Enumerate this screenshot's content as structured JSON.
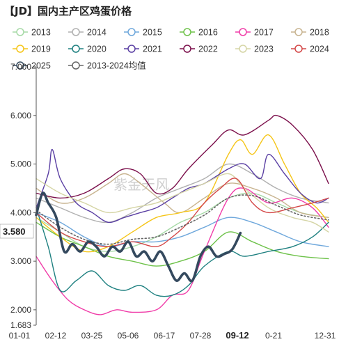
{
  "chart_data": {
    "type": "line",
    "title": "【JD】国内主产区鸡蛋价格",
    "x_tick_labels": [
      "01-01",
      "02-12",
      "03-25",
      "05-06",
      "06-17",
      "07-28",
      "09-12",
      "0-21",
      "12-31"
    ],
    "highlight_x_label": "09-12",
    "y_tick_labels": [
      "1.683",
      "2.000",
      "3.000",
      "4.000",
      "5.000",
      "6.000",
      "7.000"
    ],
    "ylim": [
      1.683,
      7.0
    ],
    "current_value_label": "3.580",
    "current_value": 3.58,
    "grid": false,
    "legend_position": "top",
    "watermark": "紫金天风",
    "x_day_range": [
      0,
      365
    ],
    "series": [
      {
        "name": "2013",
        "color": "#a6d9a6",
        "dashed": false,
        "width": 1.4,
        "points": [
          [
            0,
            3.9
          ],
          [
            30,
            3.6
          ],
          [
            60,
            3.3
          ],
          [
            90,
            3.2
          ],
          [
            120,
            3.3
          ],
          [
            150,
            3.5
          ],
          [
            180,
            3.8
          ],
          [
            210,
            4.0
          ],
          [
            240,
            4.3
          ],
          [
            270,
            4.4
          ],
          [
            300,
            4.2
          ],
          [
            330,
            4.0
          ],
          [
            365,
            3.9
          ]
        ]
      },
      {
        "name": "2014",
        "color": "#b0b0b0",
        "dashed": false,
        "width": 1.4,
        "points": [
          [
            0,
            4.3
          ],
          [
            30,
            4.1
          ],
          [
            60,
            3.9
          ],
          [
            90,
            3.8
          ],
          [
            120,
            4.0
          ],
          [
            150,
            4.3
          ],
          [
            180,
            4.5
          ],
          [
            210,
            4.7
          ],
          [
            240,
            5.0
          ],
          [
            270,
            4.8
          ],
          [
            300,
            4.5
          ],
          [
            330,
            4.3
          ],
          [
            365,
            4.2
          ]
        ]
      },
      {
        "name": "2015",
        "color": "#6fa8dc",
        "dashed": false,
        "width": 1.4,
        "points": [
          [
            0,
            4.0
          ],
          [
            30,
            3.8
          ],
          [
            60,
            3.5
          ],
          [
            90,
            3.3
          ],
          [
            120,
            3.4
          ],
          [
            150,
            3.4
          ],
          [
            180,
            3.5
          ],
          [
            210,
            3.7
          ],
          [
            240,
            3.9
          ],
          [
            270,
            3.8
          ],
          [
            300,
            3.6
          ],
          [
            330,
            3.4
          ],
          [
            365,
            3.3
          ]
        ]
      },
      {
        "name": "2016",
        "color": "#6ec24a",
        "dashed": false,
        "width": 1.4,
        "points": [
          [
            0,
            3.8
          ],
          [
            30,
            3.5
          ],
          [
            60,
            3.3
          ],
          [
            90,
            3.1
          ],
          [
            120,
            3.0
          ],
          [
            150,
            2.9
          ],
          [
            180,
            3.0
          ],
          [
            210,
            3.2
          ],
          [
            240,
            3.6
          ],
          [
            270,
            3.4
          ],
          [
            300,
            3.2
          ],
          [
            330,
            3.1
          ],
          [
            365,
            3.05
          ]
        ]
      },
      {
        "name": "2017",
        "color": "#f03ca8",
        "dashed": false,
        "width": 1.4,
        "points": [
          [
            0,
            3.1
          ],
          [
            20,
            2.6
          ],
          [
            40,
            2.2
          ],
          [
            60,
            2.0
          ],
          [
            80,
            1.9
          ],
          [
            100,
            2.0
          ],
          [
            120,
            1.95
          ],
          [
            150,
            2.0
          ],
          [
            170,
            2.3
          ],
          [
            190,
            2.4
          ],
          [
            210,
            3.2
          ],
          [
            240,
            4.3
          ],
          [
            260,
            4.5
          ],
          [
            290,
            4.2
          ],
          [
            320,
            4.3
          ],
          [
            345,
            4.1
          ],
          [
            365,
            3.7
          ]
        ]
      },
      {
        "name": "2018",
        "color": "#c8b490",
        "dashed": false,
        "width": 1.4,
        "points": [
          [
            0,
            4.5
          ],
          [
            30,
            4.2
          ],
          [
            60,
            4.3
          ],
          [
            90,
            4.6
          ],
          [
            110,
            4.8
          ],
          [
            130,
            4.6
          ],
          [
            160,
            4.2
          ],
          [
            180,
            4.0
          ],
          [
            210,
            4.3
          ],
          [
            240,
            4.6
          ],
          [
            270,
            4.5
          ],
          [
            300,
            4.3
          ],
          [
            330,
            4.0
          ],
          [
            365,
            3.9
          ]
        ]
      },
      {
        "name": "2019",
        "color": "#f5c518",
        "dashed": false,
        "width": 1.4,
        "points": [
          [
            0,
            3.9
          ],
          [
            30,
            3.5
          ],
          [
            60,
            3.2
          ],
          [
            90,
            3.3
          ],
          [
            120,
            3.6
          ],
          [
            150,
            3.9
          ],
          [
            180,
            4.0
          ],
          [
            210,
            4.2
          ],
          [
            240,
            5.2
          ],
          [
            255,
            5.5
          ],
          [
            270,
            5.2
          ],
          [
            290,
            5.6
          ],
          [
            310,
            5.0
          ],
          [
            330,
            4.4
          ],
          [
            350,
            4.1
          ],
          [
            365,
            3.8
          ]
        ]
      },
      {
        "name": "2020",
        "color": "#1e8080",
        "dashed": false,
        "width": 1.4,
        "points": [
          [
            0,
            4.1
          ],
          [
            15,
            3.3
          ],
          [
            30,
            2.4
          ],
          [
            50,
            2.6
          ],
          [
            70,
            2.8
          ],
          [
            90,
            2.5
          ],
          [
            110,
            2.4
          ],
          [
            130,
            2.5
          ],
          [
            150,
            2.3
          ],
          [
            170,
            2.3
          ],
          [
            190,
            2.5
          ],
          [
            210,
            2.9
          ],
          [
            240,
            3.2
          ],
          [
            260,
            3.1
          ],
          [
            290,
            3.2
          ],
          [
            320,
            3.3
          ],
          [
            345,
            3.5
          ],
          [
            365,
            3.8
          ]
        ]
      },
      {
        "name": "2021",
        "color": "#5a3fa3",
        "dashed": false,
        "width": 1.4,
        "points": [
          [
            0,
            4.1
          ],
          [
            15,
            4.8
          ],
          [
            20,
            5.3
          ],
          [
            30,
            4.7
          ],
          [
            50,
            4.2
          ],
          [
            70,
            4.0
          ],
          [
            90,
            3.8
          ],
          [
            110,
            3.9
          ],
          [
            130,
            4.0
          ],
          [
            150,
            4.1
          ],
          [
            170,
            4.3
          ],
          [
            190,
            4.5
          ],
          [
            210,
            4.6
          ],
          [
            240,
            4.9
          ],
          [
            260,
            5.0
          ],
          [
            280,
            4.7
          ],
          [
            290,
            5.2
          ],
          [
            310,
            4.8
          ],
          [
            330,
            4.4
          ],
          [
            350,
            4.2
          ],
          [
            365,
            4.3
          ]
        ]
      },
      {
        "name": "2022",
        "color": "#7b0f4b",
        "dashed": false,
        "width": 1.4,
        "points": [
          [
            0,
            4.4
          ],
          [
            30,
            4.3
          ],
          [
            60,
            4.4
          ],
          [
            90,
            4.7
          ],
          [
            110,
            4.9
          ],
          [
            130,
            4.8
          ],
          [
            150,
            4.4
          ],
          [
            170,
            4.5
          ],
          [
            190,
            4.9
          ],
          [
            220,
            5.4
          ],
          [
            240,
            5.7
          ],
          [
            260,
            5.6
          ],
          [
            290,
            5.9
          ],
          [
            300,
            6.0
          ],
          [
            320,
            5.8
          ],
          [
            345,
            5.3
          ],
          [
            365,
            4.6
          ]
        ]
      },
      {
        "name": "2023",
        "color": "#d5d5a5",
        "dashed": false,
        "width": 1.4,
        "points": [
          [
            0,
            4.7
          ],
          [
            30,
            4.4
          ],
          [
            60,
            4.2
          ],
          [
            90,
            4.0
          ],
          [
            120,
            4.1
          ],
          [
            150,
            4.2
          ],
          [
            180,
            4.4
          ],
          [
            210,
            4.6
          ],
          [
            240,
            4.8
          ],
          [
            260,
            4.5
          ],
          [
            290,
            4.1
          ],
          [
            320,
            3.9
          ],
          [
            345,
            3.8
          ],
          [
            365,
            3.6
          ]
        ]
      },
      {
        "name": "2024",
        "color": "#d44848",
        "dashed": false,
        "width": 1.4,
        "points": [
          [
            0,
            4.0
          ],
          [
            30,
            3.6
          ],
          [
            60,
            3.4
          ],
          [
            90,
            3.3
          ],
          [
            120,
            3.4
          ],
          [
            150,
            3.3
          ],
          [
            170,
            3.5
          ],
          [
            190,
            3.8
          ],
          [
            210,
            4.2
          ],
          [
            230,
            4.5
          ],
          [
            250,
            4.7
          ],
          [
            270,
            4.2
          ],
          [
            290,
            4.0
          ],
          [
            320,
            4.1
          ],
          [
            345,
            4.2
          ],
          [
            365,
            4.3
          ]
        ]
      },
      {
        "name": "2025",
        "color": "#34495e",
        "dashed": false,
        "width": 3.6,
        "points": [
          [
            0,
            3.95
          ],
          [
            8,
            4.4
          ],
          [
            15,
            4.2
          ],
          [
            25,
            3.9
          ],
          [
            35,
            3.2
          ],
          [
            45,
            3.35
          ],
          [
            55,
            3.2
          ],
          [
            65,
            3.4
          ],
          [
            75,
            3.3
          ],
          [
            85,
            3.1
          ],
          [
            95,
            3.3
          ],
          [
            105,
            3.2
          ],
          [
            115,
            3.4
          ],
          [
            125,
            3.1
          ],
          [
            135,
            3.2
          ],
          [
            145,
            3.0
          ],
          [
            155,
            3.2
          ],
          [
            165,
            2.9
          ],
          [
            175,
            2.6
          ],
          [
            185,
            2.75
          ],
          [
            195,
            2.6
          ],
          [
            205,
            3.1
          ],
          [
            215,
            3.3
          ],
          [
            225,
            3.1
          ],
          [
            235,
            3.15
          ],
          [
            245,
            3.25
          ],
          [
            255,
            3.58
          ]
        ]
      },
      {
        "name": "2013-2024均值",
        "color": "#666666",
        "dashed": true,
        "width": 1.6,
        "points": [
          [
            0,
            4.05
          ],
          [
            30,
            3.7
          ],
          [
            60,
            3.45
          ],
          [
            90,
            3.35
          ],
          [
            120,
            3.45
          ],
          [
            150,
            3.5
          ],
          [
            180,
            3.7
          ],
          [
            210,
            3.95
          ],
          [
            240,
            4.3
          ],
          [
            270,
            4.35
          ],
          [
            300,
            4.15
          ],
          [
            330,
            3.95
          ],
          [
            365,
            3.85
          ]
        ]
      }
    ]
  }
}
